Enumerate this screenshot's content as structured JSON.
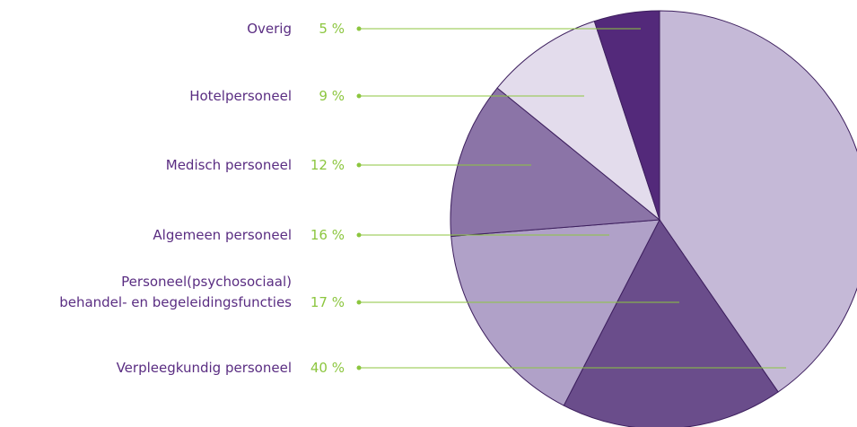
{
  "chart_data": {
    "type": "pie",
    "categories": [
      "Verpleegkundig personeel",
      "Personeel(psychosociaal)\nbehandel- en begeleidingsfuncties",
      "Algemeen personeel",
      "Medisch personeel",
      "Hotelpersoneel",
      "Overig"
    ],
    "values": [
      40,
      17,
      16,
      12,
      9,
      5
    ],
    "value_labels": [
      "40 %",
      "17 %",
      "16 %",
      "12 %",
      "9 %",
      "5 %"
    ],
    "colors": [
      "#c5b9d7",
      "#6a4d8b",
      "#b0a1c8",
      "#8b74a7",
      "#e3dcec",
      "#53297a"
    ]
  }
}
